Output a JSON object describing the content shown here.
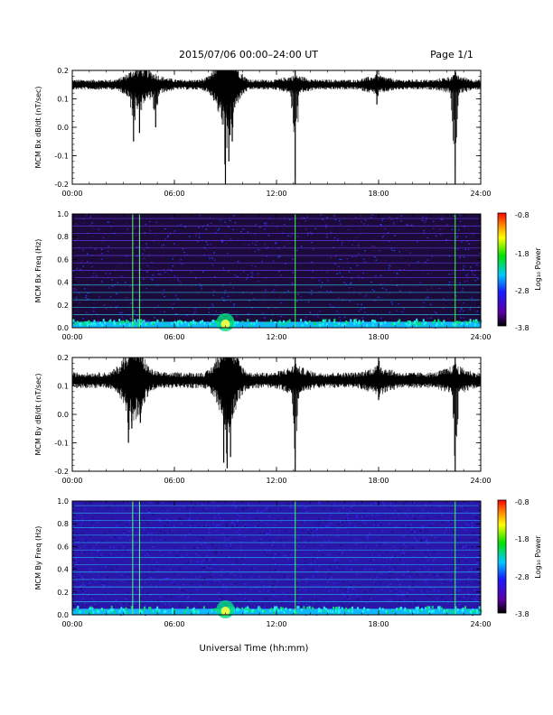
{
  "header": {
    "title": "2015/07/06  00:00–24:00 UT",
    "page": "Page 1/1"
  },
  "footer": {
    "xlabel": "Universal Time (hh:mm)"
  },
  "colorbar": {
    "label": "Log₁₀ Power",
    "ticks": [
      "-0.8",
      "-1.8",
      "-2.8",
      "-3.8"
    ]
  },
  "chart_data": [
    {
      "type": "line",
      "ylabel": "MCM Bx dB/dt (nT/sec)",
      "xlim": [
        0,
        24
      ],
      "ylim": [
        -0.2,
        0.2
      ],
      "yticks": [
        "0.2",
        "0.1",
        "0.0",
        "-0.1",
        "-0.2"
      ],
      "xticks": [
        "00:00",
        "06:00",
        "12:00",
        "18:00",
        "24:00"
      ],
      "baseline": 0.15,
      "noise": 0.018,
      "events": [
        {
          "t": 3.6,
          "min": -0.05,
          "max": 0.18
        },
        {
          "t": 3.95,
          "min": -0.02,
          "max": 0.18
        },
        {
          "t": 4.9,
          "min": 0.0,
          "max": 0.17
        },
        {
          "t": 8.6,
          "min": 0.09,
          "max": 0.2
        },
        {
          "t": 9.0,
          "min": -0.2,
          "max": 0.2
        },
        {
          "t": 9.2,
          "min": -0.12,
          "max": 0.2
        },
        {
          "t": 9.4,
          "min": -0.05,
          "max": 0.2
        },
        {
          "t": 13.1,
          "min": -0.2,
          "max": 0.2
        },
        {
          "t": 17.9,
          "min": 0.08,
          "max": 0.2
        },
        {
          "t": 22.5,
          "min": -0.2,
          "max": 0.2
        }
      ]
    },
    {
      "type": "heatmap",
      "ylabel": "MCM Bx Freq (Hz)",
      "xlim": [
        0,
        24
      ],
      "ylim": [
        0,
        1
      ],
      "yticks": [
        "1.0",
        "0.8",
        "0.6",
        "0.4",
        "0.2",
        "0.0"
      ],
      "xticks": [
        "00:00",
        "06:00",
        "12:00",
        "18:00",
        "24:00"
      ],
      "zlim": [
        -3.8,
        -0.8
      ],
      "background_level": -3.5
    },
    {
      "type": "line",
      "ylabel": "MCM By dB/dt (nT/sec)",
      "xlim": [
        0,
        24
      ],
      "ylim": [
        -0.2,
        0.2
      ],
      "yticks": [
        "0.2",
        "0.1",
        "0.0",
        "-0.1",
        "-0.2"
      ],
      "xticks": [
        "00:00",
        "06:00",
        "12:00",
        "18:00",
        "24:00"
      ],
      "baseline": 0.12,
      "noise": 0.028,
      "events": [
        {
          "t": 3.3,
          "min": -0.1,
          "max": 0.18
        },
        {
          "t": 3.5,
          "min": -0.05,
          "max": 0.2
        },
        {
          "t": 4.0,
          "min": -0.03,
          "max": 0.2
        },
        {
          "t": 8.9,
          "min": -0.17,
          "max": 0.2
        },
        {
          "t": 9.1,
          "min": -0.19,
          "max": 0.2
        },
        {
          "t": 9.3,
          "min": -0.15,
          "max": 0.2
        },
        {
          "t": 13.1,
          "min": -0.2,
          "max": 0.2
        },
        {
          "t": 18.0,
          "min": 0.05,
          "max": 0.2
        },
        {
          "t": 22.5,
          "min": -0.2,
          "max": 0.2
        }
      ]
    },
    {
      "type": "heatmap",
      "ylabel": "MCM By Freq (Hz)",
      "xlim": [
        0,
        24
      ],
      "ylim": [
        0,
        1
      ],
      "yticks": [
        "1.0",
        "0.8",
        "0.6",
        "0.4",
        "0.2",
        "0.0"
      ],
      "xticks": [
        "00:00",
        "06:00",
        "12:00",
        "18:00",
        "24:00"
      ],
      "zlim": [
        -3.8,
        -0.8
      ],
      "background_level": -3.0
    }
  ]
}
